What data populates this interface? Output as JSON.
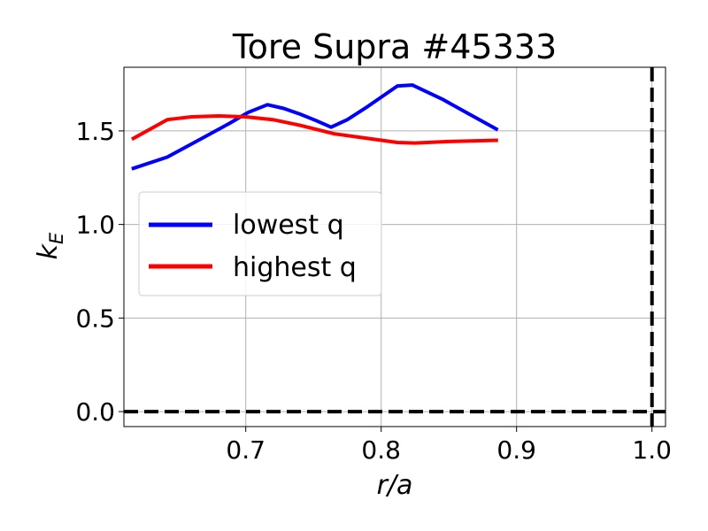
{
  "chart_data": {
    "type": "line",
    "title": "Tore Supra #45333",
    "xlabel": "r/a",
    "ylabel_base": "k",
    "ylabel_sub": "E",
    "xlim": [
      0.61,
      1.01
    ],
    "ylim": [
      -0.08,
      1.84
    ],
    "xticks": [
      {
        "value": 0.7,
        "label": "0.7"
      },
      {
        "value": 0.8,
        "label": "0.8"
      },
      {
        "value": 0.9,
        "label": "0.9"
      },
      {
        "value": 1.0,
        "label": "1.0"
      }
    ],
    "yticks": [
      {
        "value": 0.0,
        "label": "0.0"
      },
      {
        "value": 0.5,
        "label": "0.5"
      },
      {
        "value": 1.0,
        "label": "1.0"
      },
      {
        "value": 1.5,
        "label": "1.5"
      }
    ],
    "grid": true,
    "legend_position": "center-left",
    "series": [
      {
        "name": "lowest q",
        "color": "#0000ff",
        "x": [
          0.617,
          0.642,
          0.665,
          0.688,
          0.702,
          0.716,
          0.728,
          0.74,
          0.752,
          0.763,
          0.775,
          0.79,
          0.812,
          0.823,
          0.845,
          0.865,
          0.885
        ],
        "y": [
          1.3,
          1.36,
          1.45,
          1.54,
          1.6,
          1.64,
          1.62,
          1.59,
          1.555,
          1.52,
          1.56,
          1.63,
          1.74,
          1.745,
          1.67,
          1.59,
          1.51
        ]
      },
      {
        "name": "highest q",
        "color": "#ff0000",
        "x": [
          0.617,
          0.642,
          0.66,
          0.68,
          0.7,
          0.72,
          0.74,
          0.765,
          0.79,
          0.812,
          0.825,
          0.85,
          0.885
        ],
        "y": [
          1.46,
          1.56,
          1.575,
          1.58,
          1.575,
          1.56,
          1.53,
          1.485,
          1.46,
          1.438,
          1.435,
          1.443,
          1.45
        ]
      }
    ],
    "reference_lines": [
      {
        "orientation": "horizontal",
        "value": 0.0,
        "style": "dashed",
        "color": "#000000"
      },
      {
        "orientation": "vertical",
        "value": 1.0,
        "style": "dashed",
        "color": "#000000"
      }
    ]
  }
}
